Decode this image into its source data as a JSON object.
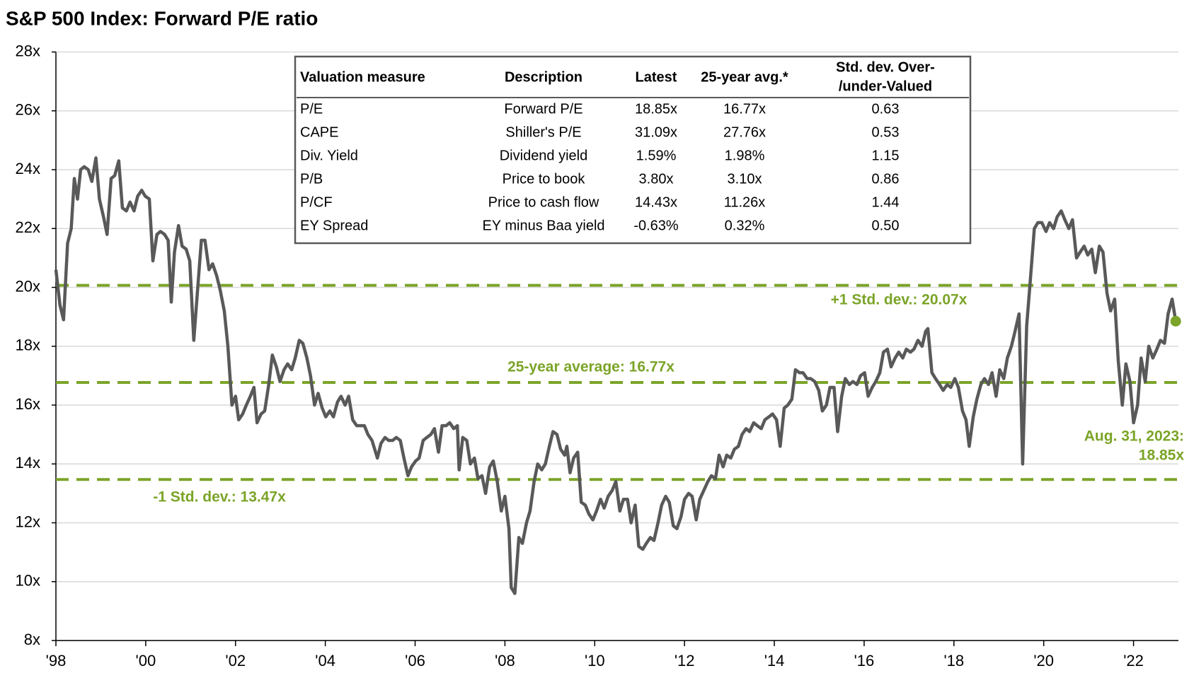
{
  "chart_data": {
    "type": "line",
    "title": "S&P 500 Index: Forward P/E ratio",
    "xlim": [
      1998,
      2023
    ],
    "xticks": [
      {
        "value": 1998,
        "label": "'98"
      },
      {
        "value": 2000,
        "label": "'00"
      },
      {
        "value": 2002,
        "label": "'02"
      },
      {
        "value": 2004,
        "label": "'04"
      },
      {
        "value": 2006,
        "label": "'06"
      },
      {
        "value": 2008,
        "label": "'08"
      },
      {
        "value": 2010,
        "label": "'10"
      },
      {
        "value": 2012,
        "label": "'12"
      },
      {
        "value": 2014,
        "label": "'14"
      },
      {
        "value": 2016,
        "label": "'16"
      },
      {
        "value": 2018,
        "label": "'18"
      },
      {
        "value": 2020,
        "label": "'20"
      },
      {
        "value": 2022,
        "label": "'22"
      }
    ],
    "ylim": [
      8,
      28
    ],
    "yticks": [
      {
        "value": 8,
        "label": "8x"
      },
      {
        "value": 10,
        "label": "10x"
      },
      {
        "value": 12,
        "label": "12x"
      },
      {
        "value": 14,
        "label": "14x"
      },
      {
        "value": 16,
        "label": "16x"
      },
      {
        "value": 18,
        "label": "18x"
      },
      {
        "value": 20,
        "label": "20x"
      },
      {
        "value": 22,
        "label": "22x"
      },
      {
        "value": 24,
        "label": "24x"
      },
      {
        "value": 26,
        "label": "26x"
      },
      {
        "value": 28,
        "label": "28x"
      }
    ],
    "grid": true,
    "series": [
      {
        "color": "#595959",
        "x": [
          1998.0,
          1998.09,
          1998.17,
          1998.26,
          1998.34,
          1998.41,
          1998.48,
          1998.55,
          1998.63,
          1998.72,
          1998.8,
          1998.89,
          1998.97,
          1999.06,
          1999.14,
          1999.23,
          1999.31,
          1999.4,
          1999.48,
          1999.57,
          1999.65,
          1999.74,
          1999.82,
          1999.91,
          1999.99,
          2000.08,
          2000.16,
          2000.25,
          2000.33,
          2000.42,
          2000.5,
          2000.57,
          2000.64,
          2000.73,
          2000.81,
          2000.9,
          2000.98,
          2001.07,
          2001.15,
          2001.24,
          2001.32,
          2001.41,
          2001.49,
          2001.58,
          2001.66,
          2001.75,
          2001.83,
          2001.92,
          2002.0,
          2002.07,
          2002.16,
          2002.24,
          2002.33,
          2002.41,
          2002.48,
          2002.57,
          2002.65,
          2002.74,
          2002.82,
          2002.91,
          2002.99,
          2003.08,
          2003.16,
          2003.25,
          2003.33,
          2003.42,
          2003.5,
          2003.59,
          2003.67,
          2003.76,
          2003.84,
          2003.93,
          2004.01,
          2004.1,
          2004.18,
          2004.27,
          2004.35,
          2004.44,
          2004.52,
          2004.61,
          2004.7,
          2004.78,
          2004.87,
          2004.95,
          2005.04,
          2005.16,
          2005.24,
          2005.33,
          2005.41,
          2005.5,
          2005.58,
          2005.67,
          2005.75,
          2005.84,
          2005.92,
          2006.01,
          2006.09,
          2006.18,
          2006.26,
          2006.35,
          2006.43,
          2006.52,
          2006.6,
          2006.69,
          2006.77,
          2006.86,
          2006.94,
          2006.98,
          2007.06,
          2007.15,
          2007.23,
          2007.32,
          2007.4,
          2007.49,
          2007.57,
          2007.66,
          2007.74,
          2007.83,
          2007.92,
          2008.0,
          2008.09,
          2008.14,
          2008.22,
          2008.31,
          2008.39,
          2008.48,
          2008.56,
          2008.65,
          2008.73,
          2008.82,
          2008.9,
          2008.99,
          2009.07,
          2009.16,
          2009.24,
          2009.33,
          2009.38,
          2009.45,
          2009.53,
          2009.62,
          2009.7,
          2009.79,
          2009.87,
          2009.96,
          2010.04,
          2010.13,
          2010.21,
          2010.3,
          2010.39,
          2010.47,
          2010.56,
          2010.64,
          2010.73,
          2010.81,
          2010.9,
          2010.98,
          2011.07,
          2011.15,
          2011.24,
          2011.32,
          2011.41,
          2011.49,
          2011.58,
          2011.66,
          2011.75,
          2011.83,
          2011.92,
          2012.0,
          2012.09,
          2012.17,
          2012.26,
          2012.34,
          2012.43,
          2012.52,
          2012.6,
          2012.69,
          2012.77,
          2012.86,
          2012.94,
          2013.03,
          2013.11,
          2013.2,
          2013.28,
          2013.37,
          2013.45,
          2013.54,
          2013.62,
          2013.71,
          2013.79,
          2013.88,
          2013.96,
          2014.05,
          2014.13,
          2014.22,
          2014.3,
          2014.39,
          2014.47,
          2014.56,
          2014.64,
          2014.73,
          2014.81,
          2014.9,
          2014.99,
          2015.07,
          2015.16,
          2015.24,
          2015.33,
          2015.41,
          2015.5,
          2015.58,
          2015.67,
          2015.75,
          2015.84,
          2015.92,
          2016.01,
          2016.09,
          2016.18,
          2016.26,
          2016.35,
          2016.43,
          2016.52,
          2016.6,
          2016.69,
          2016.77,
          2016.86,
          2016.94,
          2017.03,
          2017.11,
          2017.2,
          2017.29,
          2017.37,
          2017.42,
          2017.51,
          2017.59,
          2017.68,
          2017.76,
          2017.85,
          2017.93,
          2018.02,
          2018.1,
          2018.19,
          2018.27,
          2018.34,
          2018.43,
          2018.51,
          2018.6,
          2018.68,
          2018.77,
          2018.85,
          2018.94,
          2019.02,
          2019.11,
          2019.19,
          2019.28,
          2019.36,
          2019.45,
          2019.53,
          2019.62,
          2019.7,
          2019.79,
          2019.87,
          2019.96,
          2020.05,
          2020.13,
          2020.22,
          2020.3,
          2020.39,
          2020.47,
          2020.56,
          2020.64,
          2020.73,
          2020.81,
          2020.9,
          2020.98,
          2021.07,
          2021.15,
          2021.24,
          2021.32,
          2021.41,
          2021.49,
          2021.58,
          2021.66,
          2021.75,
          2021.83,
          2021.92,
          2022.0,
          2022.09,
          2022.17,
          2022.26,
          2022.34,
          2022.43,
          2022.52,
          2022.6,
          2022.69,
          2022.77,
          2022.86,
          2022.94
        ],
        "values": [
          20.6,
          19.4,
          18.9,
          21.5,
          22,
          23.7,
          23,
          24,
          24.1,
          24,
          23.6,
          24.4,
          23,
          22.4,
          21.8,
          23.7,
          23.8,
          24.3,
          22.7,
          22.6,
          22.9,
          22.6,
          23.1,
          23.3,
          23.1,
          23,
          20.9,
          21.8,
          21.9,
          21.8,
          21.6,
          19.5,
          21.2,
          22.1,
          21.4,
          21.3,
          20.9,
          18.2,
          19.8,
          21.6,
          21.6,
          20.6,
          20.8,
          20.4,
          19.9,
          19.2,
          18,
          16,
          16.3,
          15.5,
          15.7,
          16,
          16.3,
          16.6,
          15.4,
          15.7,
          15.8,
          16.7,
          17.7,
          17.3,
          16.8,
          17.2,
          17.4,
          17.2,
          17.6,
          18.2,
          18.1,
          17.6,
          17,
          16,
          16.4,
          15.9,
          15.6,
          15.8,
          15.6,
          16.1,
          16.3,
          16,
          16.3,
          15.5,
          15.3,
          15.3,
          15.3,
          15,
          14.8,
          14.2,
          14.7,
          14.9,
          14.8,
          14.8,
          14.9,
          14.8,
          14.2,
          13.6,
          13.9,
          14.1,
          14.2,
          14.8,
          14.9,
          15,
          15.2,
          14.4,
          15.3,
          15.3,
          15.4,
          15.2,
          15.3,
          13.8,
          14.9,
          14.8,
          14,
          14.2,
          13.5,
          13.6,
          13,
          13.9,
          14.1,
          13.4,
          12.4,
          12.9,
          11.8,
          9.8,
          9.6,
          11.5,
          11.3,
          12,
          12.4,
          13.4,
          14,
          13.8,
          14,
          14.6,
          15.1,
          15,
          14.5,
          14.3,
          14.6,
          13.7,
          14.2,
          14.4,
          12.7,
          12.6,
          12.3,
          12.1,
          12.4,
          12.8,
          12.5,
          12.9,
          13.1,
          13.4,
          12.4,
          12.8,
          12.8,
          12,
          12.6,
          11.2,
          11.1,
          11.3,
          11.5,
          11.4,
          12,
          12.6,
          12.9,
          12.7,
          11.9,
          11.8,
          12.2,
          12.8,
          13,
          12.9,
          12.1,
          12.8,
          13.1,
          13.4,
          13.6,
          13.5,
          14.3,
          13.9,
          14.3,
          14.2,
          14.5,
          14.6,
          15,
          15.2,
          15.1,
          15.4,
          15.3,
          15.2,
          15.5,
          15.6,
          15.7,
          15.5,
          14.6,
          15.9,
          16,
          16.2,
          17.2,
          17.1,
          17.1,
          16.9,
          16.9,
          16.8,
          16.5,
          15.8,
          16,
          16.6,
          16.6,
          15.1,
          16.3,
          16.9,
          16.7,
          16.8,
          16.7,
          17,
          17.1,
          16.3,
          16.6,
          16.8,
          17.1,
          17.8,
          17.9,
          17.3,
          17.6,
          17.8,
          17.6,
          17.9,
          17.8,
          17.9,
          18.2,
          18,
          18.5,
          18.6,
          17.1,
          16.9,
          16.7,
          16.5,
          16.7,
          16.6,
          16.9,
          16.6,
          15.8,
          15.5,
          14.6,
          15.6,
          16.2,
          16.7,
          16.9,
          16.7,
          17.1,
          16.3,
          17.2,
          16.9,
          17.6,
          18,
          18.5,
          19.1,
          14,
          18.7,
          20.2,
          22,
          22.2,
          22.2,
          21.9,
          22.2,
          22,
          22.4,
          22.6,
          22.3,
          22,
          22.3,
          21,
          21.2,
          21.4,
          21.1,
          21.3,
          20.5,
          21.4,
          21.2,
          19.8,
          19.2,
          19.6,
          17.5,
          16,
          17.4,
          16.8,
          15.4,
          16,
          17.6,
          16.8,
          18,
          17.6,
          17.9,
          18.2,
          18.1,
          19.1,
          19.6,
          18.85
        ]
      }
    ],
    "reference_lines": [
      {
        "value": 20.07,
        "label": "+1 Std. dev.: 20.07x"
      },
      {
        "value": 16.77,
        "label": "25-year average: 16.77x"
      },
      {
        "value": 13.47,
        "label": "-1 Std. dev.: 13.47x"
      }
    ],
    "reference_color": "#7ba428",
    "end_point": {
      "x": 2022.94,
      "y": 18.85,
      "label": [
        "Aug. 31, 2023:",
        "18.85x"
      ]
    },
    "table": {
      "header": [
        "Valuation measure",
        "Description",
        "Latest",
        "25-year avg.*",
        [
          "Std. dev. Over-",
          "/under-Valued"
        ]
      ],
      "rows": [
        [
          "P/E",
          "Forward P/E",
          "18.85x",
          "16.77x",
          "0.63"
        ],
        [
          "CAPE",
          "Shiller's P/E",
          "31.09x",
          "27.76x",
          "0.53"
        ],
        [
          "Div. Yield",
          "Dividend yield",
          "1.59%",
          "1.98%",
          "1.15"
        ],
        [
          "P/B",
          "Price to book",
          "3.80x",
          "3.10x",
          "0.86"
        ],
        [
          "P/CF",
          "Price to cash flow",
          "14.43x",
          "11.26x",
          "1.44"
        ],
        [
          "EY Spread",
          "EY minus Baa yield",
          "-0.63%",
          "0.32%",
          "0.50"
        ]
      ]
    }
  }
}
